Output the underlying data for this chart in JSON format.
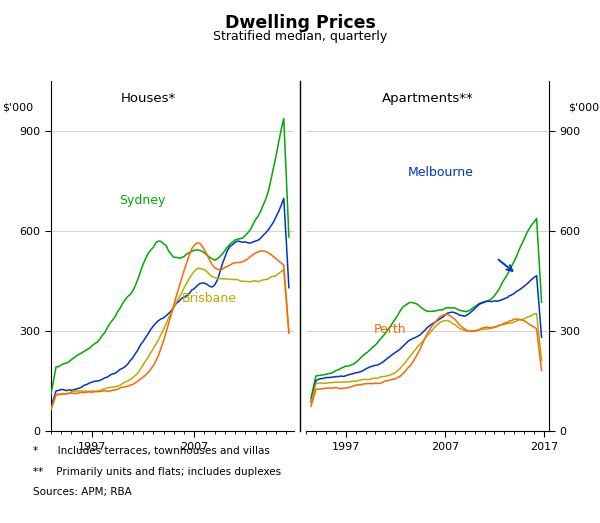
{
  "title": "Dwelling Prices",
  "subtitle": "Stratified median, quarterly",
  "ylabel": "$'000",
  "ylim": [
    0,
    1050
  ],
  "yticks": [
    0,
    300,
    600,
    900
  ],
  "panel_labels": [
    "Houses*",
    "Apartments**"
  ],
  "footnote1": "*      Includes terraces, townhouses and villas",
  "footnote2": "**    Primarily units and flats; includes duplexes",
  "footnote3": "Sources: APM; RBA",
  "colors": {
    "Sydney": "#00AA00",
    "Melbourne": "#0033CC",
    "Brisbane": "#BBAA00",
    "Perth": "#FF6600"
  },
  "houses_xlim": [
    1993.0,
    2016.75
  ],
  "apts_xlim": [
    1993.0,
    2017.5
  ],
  "houses_xticks": [
    1997,
    2007
  ],
  "apts_xticks": [
    1997,
    2007,
    2017
  ]
}
